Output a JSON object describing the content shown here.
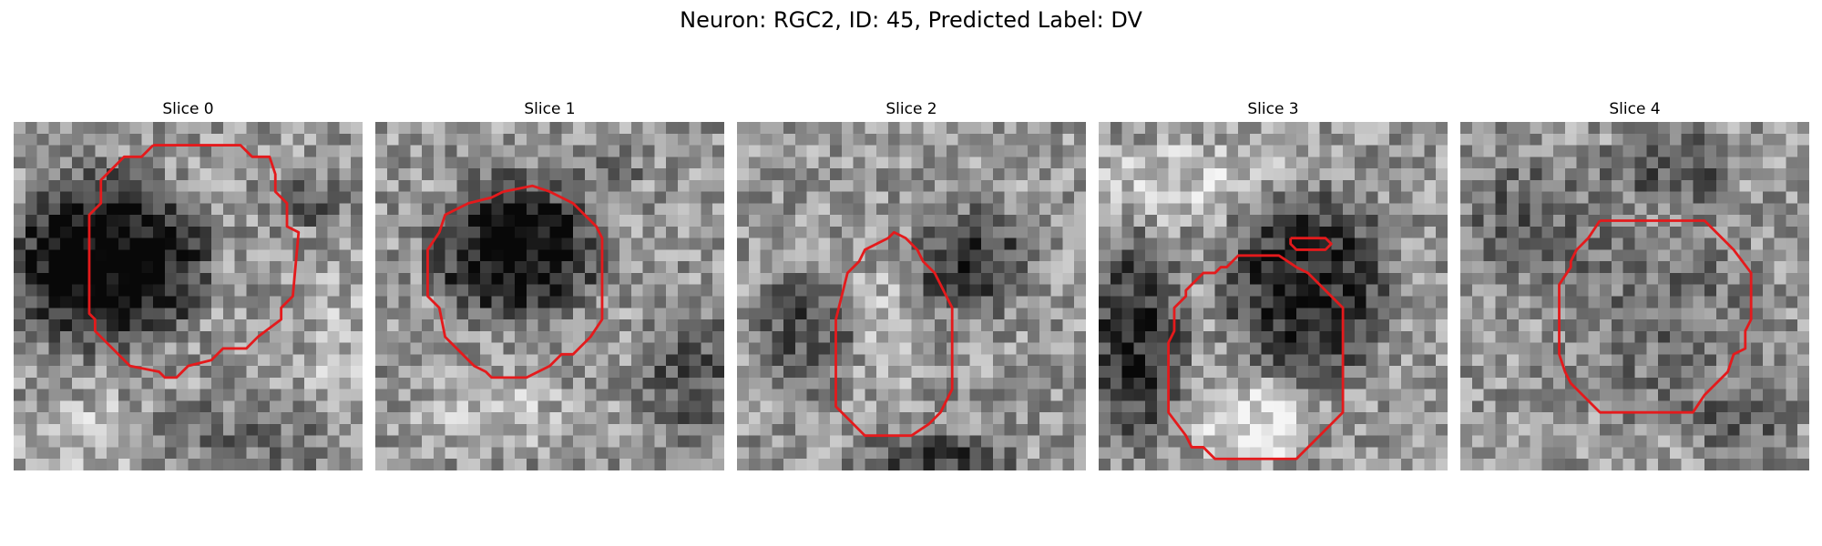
{
  "figure": {
    "title": "Neuron: RGC2, ID: 45, Predicted Label: DV"
  },
  "panels": [
    {
      "title": "Slice 0"
    },
    {
      "title": "Slice 1"
    },
    {
      "title": "Slice 2"
    },
    {
      "title": "Slice 3"
    },
    {
      "title": "Slice 4"
    }
  ],
  "colors": {
    "contour": "#e41a1c",
    "background": "#ffffff"
  }
}
